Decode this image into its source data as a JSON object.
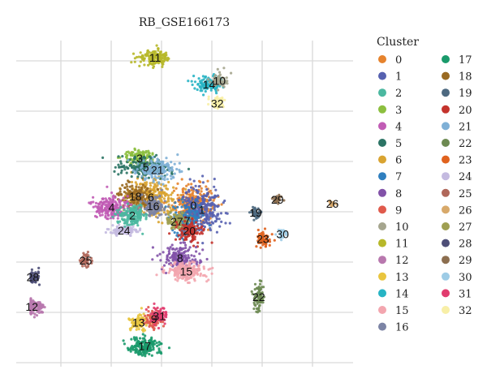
{
  "chart_data": {
    "type": "scatter",
    "title": "RB_GSE166173",
    "xlabel": "",
    "ylabel": "",
    "grid": true,
    "legend": {
      "title": "Cluster",
      "placement": "right",
      "columns": 2
    },
    "series": [
      {
        "name": "0",
        "color": "#E6832D",
        "center": [
          2.1,
          0.0
        ]
      },
      {
        "name": "1",
        "color": "#5661B0",
        "center": [
          2.9,
          -0.6
        ]
      },
      {
        "name": "2",
        "color": "#4BB8A0",
        "center": [
          -3.8,
          -1.4
        ]
      },
      {
        "name": "3",
        "color": "#8CBF3F",
        "center": [
          -3.1,
          6.4
        ]
      },
      {
        "name": "4",
        "color": "#C15CB5",
        "center": [
          -5.8,
          -0.3
        ]
      },
      {
        "name": "5",
        "color": "#2C7465",
        "center": [
          -2.5,
          5.2
        ]
      },
      {
        "name": "6",
        "color": "#D9A431",
        "center": [
          -2.0,
          1.1
        ]
      },
      {
        "name": "7",
        "color": "#2F7FBF",
        "center": [
          1.5,
          -2.1
        ]
      },
      {
        "name": "8",
        "color": "#8252A8",
        "center": [
          0.8,
          -7.2
        ]
      },
      {
        "name": "9",
        "color": "#E05A4C",
        "center": [
          -1.7,
          -15.5
        ]
      },
      {
        "name": "10",
        "color": "#A5A58E",
        "center": [
          4.6,
          17.0
        ]
      },
      {
        "name": "11",
        "color": "#B7B82A",
        "center": [
          -1.6,
          20.1
        ]
      },
      {
        "name": "12",
        "color": "#B878AE",
        "center": [
          -13.5,
          -13.8
        ]
      },
      {
        "name": "13",
        "color": "#E9C53F",
        "center": [
          -3.2,
          -16.0
        ]
      },
      {
        "name": "14",
        "color": "#27B4C4",
        "center": [
          3.6,
          16.5
        ]
      },
      {
        "name": "15",
        "color": "#F3A6AF",
        "center": [
          1.4,
          -9.0
        ]
      },
      {
        "name": "16",
        "color": "#7C84A5",
        "center": [
          -1.8,
          -0.1
        ]
      },
      {
        "name": "17",
        "color": "#1A9A6B",
        "center": [
          -2.6,
          -19.2
        ]
      },
      {
        "name": "18",
        "color": "#9A6A22",
        "center": [
          -3.5,
          1.2
        ]
      },
      {
        "name": "19",
        "color": "#4D6980",
        "center": [
          8.1,
          -1.0
        ]
      },
      {
        "name": "20",
        "color": "#C4332C",
        "center": [
          1.7,
          -3.5
        ]
      },
      {
        "name": "21",
        "color": "#7FB0D6",
        "center": [
          -1.4,
          4.8
        ]
      },
      {
        "name": "22",
        "color": "#6D8A52",
        "center": [
          8.4,
          -12.5
        ]
      },
      {
        "name": "23",
        "color": "#E0621E",
        "center": [
          8.8,
          -4.6
        ]
      },
      {
        "name": "24",
        "color": "#C4BAE0",
        "center": [
          -4.6,
          -3.4
        ]
      },
      {
        "name": "25",
        "color": "#B0675A",
        "center": [
          -8.3,
          -7.5
        ]
      },
      {
        "name": "26",
        "color": "#D8A96A",
        "center": [
          15.5,
          0.2
        ]
      },
      {
        "name": "27",
        "color": "#9F9F52",
        "center": [
          0.5,
          -2.2
        ]
      },
      {
        "name": "28",
        "color": "#4E4F78",
        "center": [
          -13.4,
          -9.8
        ]
      },
      {
        "name": "29",
        "color": "#8C6E4F",
        "center": [
          10.2,
          0.8
        ]
      },
      {
        "name": "30",
        "color": "#9ECCE6",
        "center": [
          10.7,
          -3.9
        ]
      },
      {
        "name": "31",
        "color": "#E13C6F",
        "center": [
          -1.2,
          -15.1
        ]
      },
      {
        "name": "32",
        "color": "#F8EFA7",
        "center": [
          4.4,
          13.9
        ]
      }
    ]
  }
}
